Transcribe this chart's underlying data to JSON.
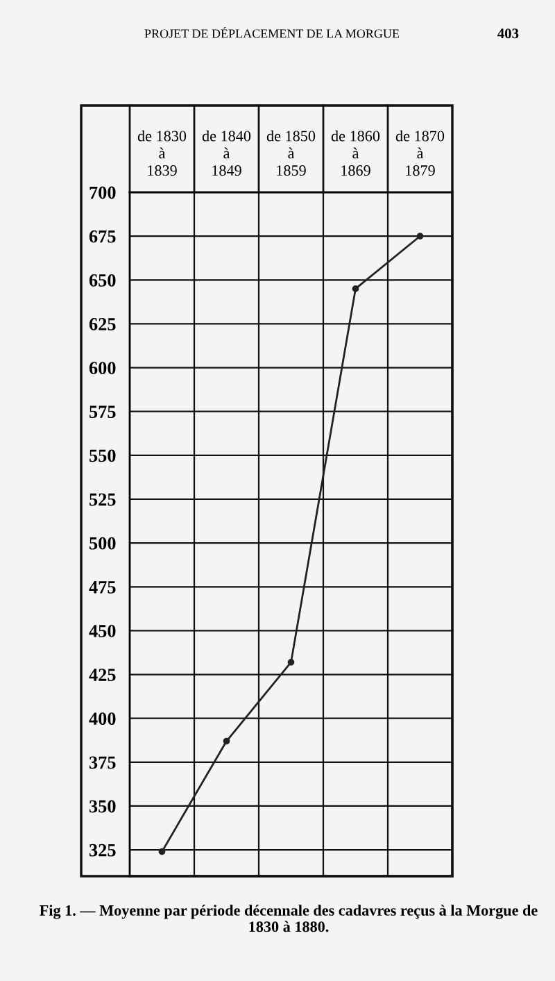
{
  "chart_data": {
    "type": "line",
    "title": "Fig 1. — Moyenne par période décennale des cadavres reçus à la Morgue de 1830 à 1880.",
    "annotations": [
      "PROJET DE DÉPLACEMENT DE LA MORGUE",
      "403"
    ],
    "categories": [
      "de 1830\nà\n1839",
      "de 1840\nà\n1849",
      "de 1850\nà\n1859",
      "de 1860\nà\n1869",
      "de 1870\nà\n1879"
    ],
    "series": [
      {
        "color": "#222222",
        "values": [
          324,
          387,
          432,
          645,
          675
        ]
      }
    ],
    "ylim": [
      310,
      700
    ],
    "yticks": [
      325,
      350,
      375,
      400,
      425,
      450,
      475,
      500,
      525,
      550,
      575,
      600,
      625,
      650,
      675,
      700
    ],
    "grid": true,
    "marker": "circle",
    "line_style": "solid",
    "legend": false
  }
}
